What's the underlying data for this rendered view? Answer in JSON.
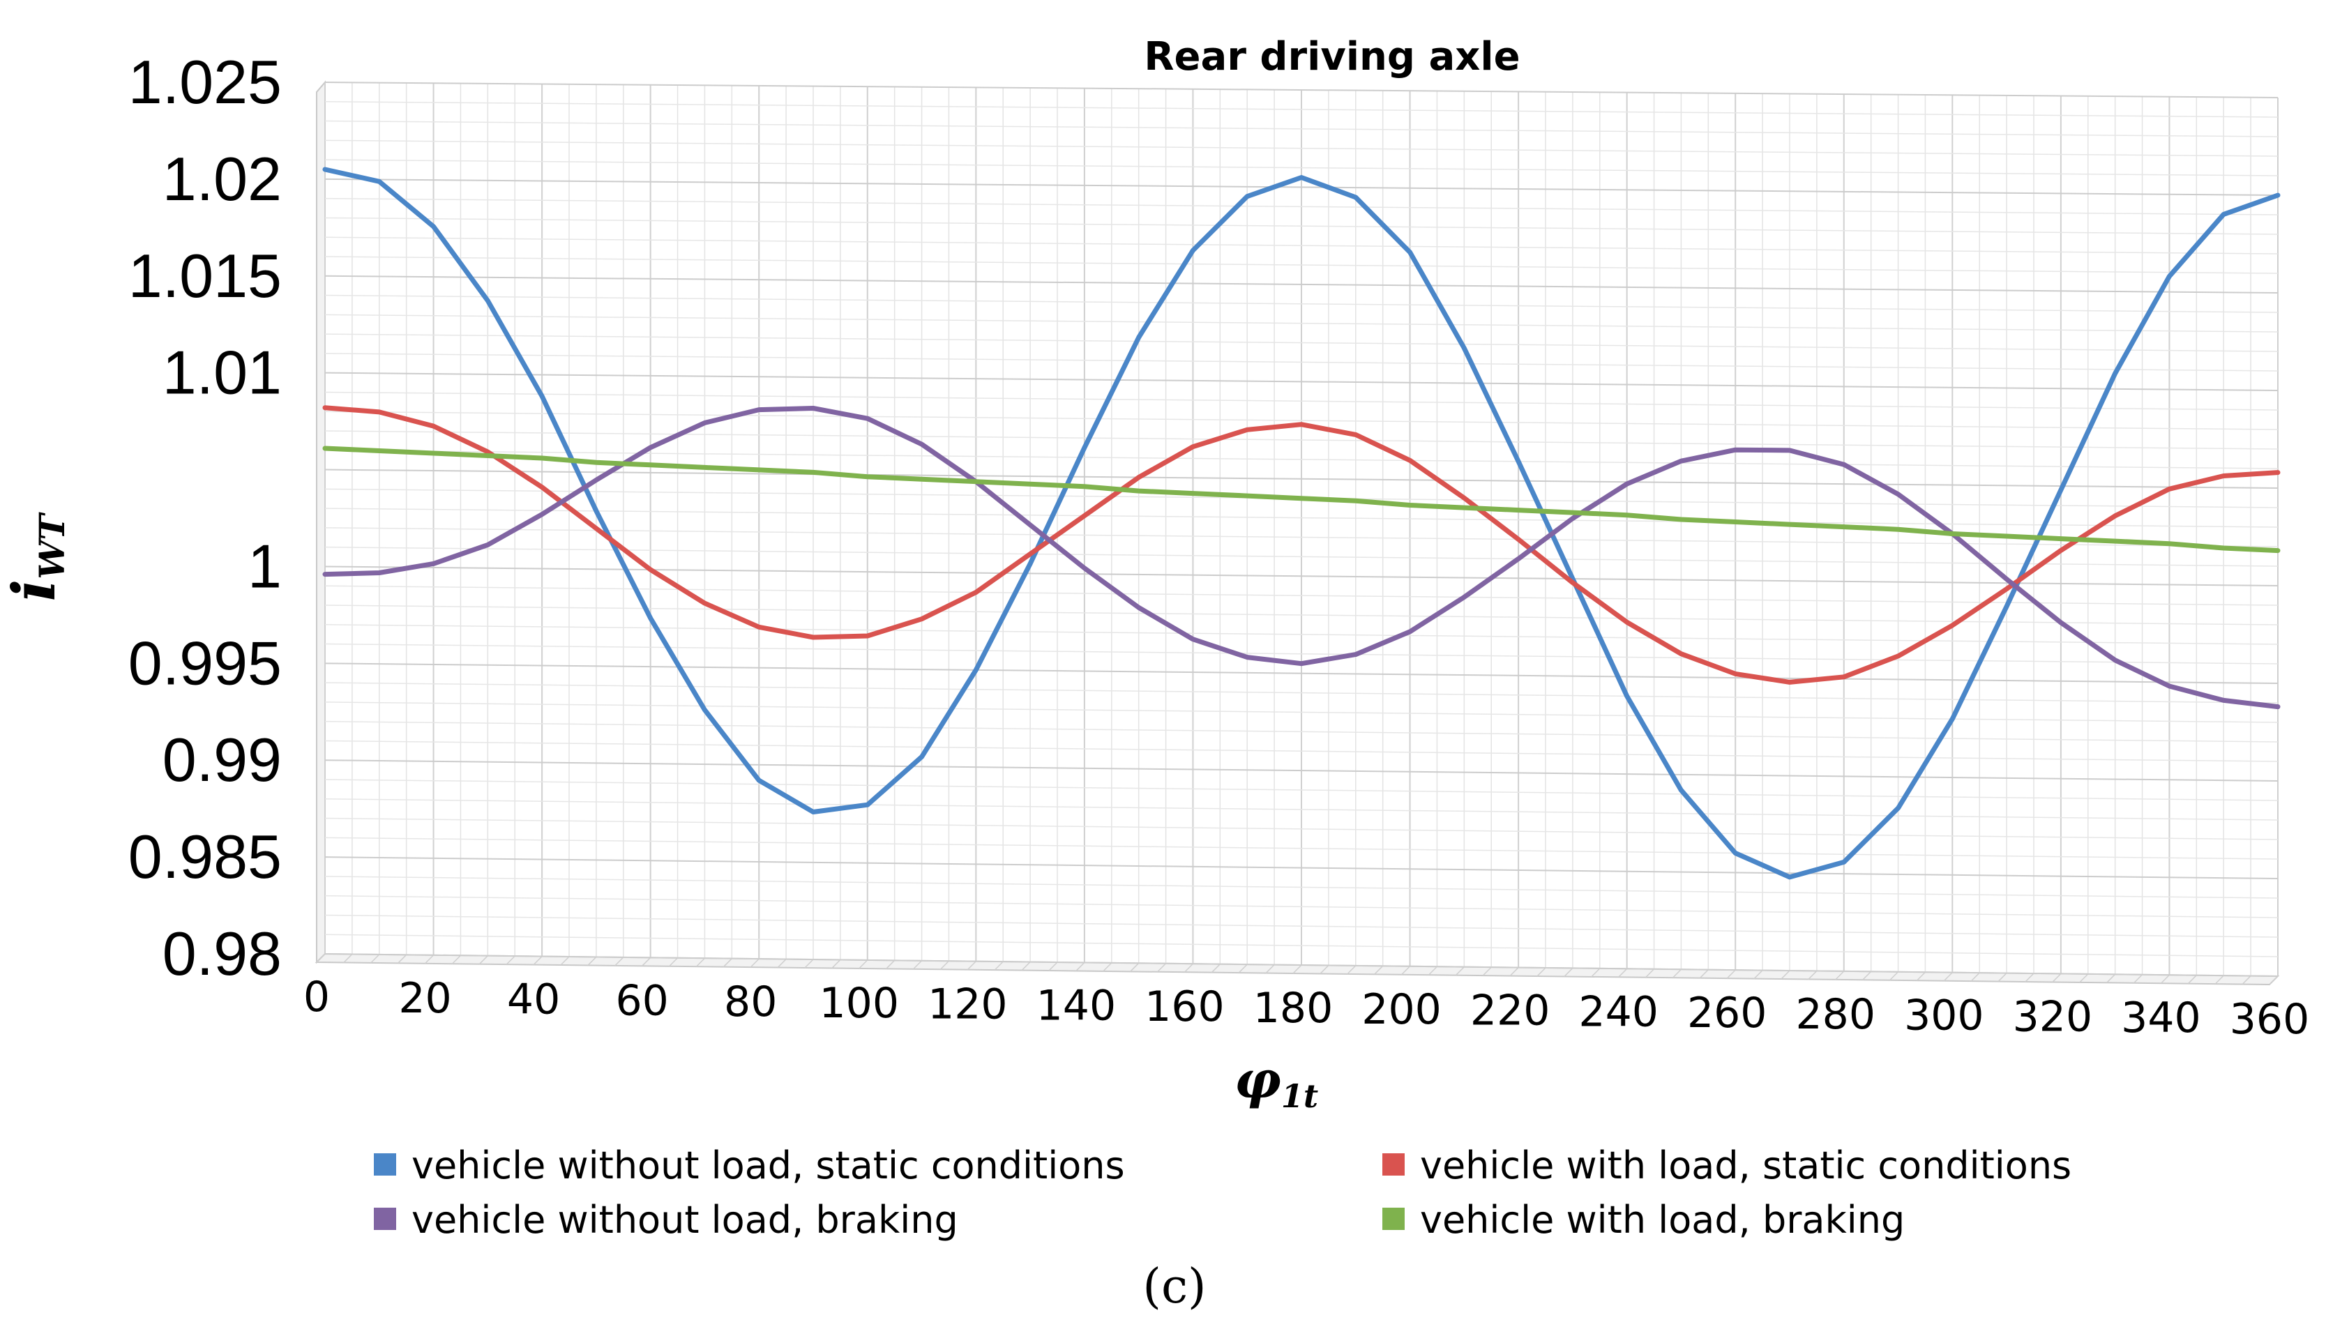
{
  "chart_data": {
    "type": "line",
    "title": "Rear driving axle",
    "ylabel": {
      "main": "i",
      "sub": "WT"
    },
    "xlabel": {
      "main": "φ",
      "sub": "1t"
    },
    "ylim": [
      0.98,
      1.025
    ],
    "y_ticks": [
      "0.98",
      "0.985",
      "0.99",
      "0.995",
      "1",
      "1.005",
      "1.01",
      "1.015",
      "1.02",
      "1.025"
    ],
    "y_tick_values": [
      0.98,
      0.985,
      0.99,
      0.995,
      1.0,
      1.005,
      1.01,
      1.015,
      1.02,
      1.025
    ],
    "y_tick_labels": [
      "0.98",
      "0.985",
      "0.99",
      "0.995",
      "1",
      "",
      "1.01",
      "1.015",
      "1.02",
      "1.025"
    ],
    "x_ticks": [
      0,
      20,
      40,
      60,
      80,
      100,
      120,
      140,
      160,
      180,
      200,
      220,
      240,
      260,
      280,
      300,
      320,
      340,
      360
    ],
    "x_tick_labels": [
      "0",
      "20",
      "40",
      "60",
      "80",
      "100",
      "120",
      "140",
      "160",
      "180",
      "200",
      "220",
      "240",
      "260",
      "280",
      "300",
      "320",
      "340",
      "360"
    ],
    "x": [
      0,
      10,
      20,
      30,
      40,
      50,
      60,
      70,
      80,
      90,
      100,
      110,
      120,
      130,
      140,
      150,
      160,
      170,
      180,
      190,
      200,
      210,
      220,
      230,
      240,
      250,
      260,
      270,
      280,
      290,
      300,
      310,
      320,
      330,
      340,
      350,
      360
    ],
    "grid": true,
    "legend_position": "bottom",
    "series": [
      {
        "name": "vehicle without load, static conditions",
        "color": "#4A86C8",
        "values": [
          1.0205,
          1.0199,
          1.0176,
          1.0138,
          1.0089,
          1.003,
          0.9975,
          0.9928,
          0.9892,
          0.9876,
          0.988,
          0.9905,
          0.995,
          1.0005,
          1.0065,
          1.0122,
          1.0167,
          1.0195,
          1.0205,
          1.0195,
          1.0167,
          1.0118,
          1.006,
          1.0,
          0.994,
          0.9892,
          0.986,
          0.9848,
          0.9856,
          0.9884,
          0.993,
          0.9988,
          1.0048,
          1.0108,
          1.0158,
          1.019,
          1.02
        ]
      },
      {
        "name": "vehicle with load, static conditions",
        "color": "#D9534F",
        "values": [
          1.0082,
          1.008,
          1.0073,
          1.006,
          1.0042,
          1.0021,
          1.0,
          0.9983,
          0.9971,
          0.9966,
          0.9967,
          0.9976,
          0.999,
          1.001,
          1.003,
          1.005,
          1.0066,
          1.0075,
          1.0078,
          1.0073,
          1.006,
          1.0041,
          1.002,
          0.9998,
          0.9978,
          0.9962,
          0.9952,
          0.9948,
          0.9951,
          0.9962,
          0.9978,
          0.9997,
          1.0017,
          1.0035,
          1.0049,
          1.0056,
          1.0058
        ]
      },
      {
        "name": "vehicle without load, braking",
        "color": "#8064A2",
        "values": [
          0.9996,
          0.9997,
          1.0002,
          1.0012,
          1.0028,
          1.0046,
          1.0063,
          1.0076,
          1.0083,
          1.0084,
          1.0079,
          1.0066,
          1.0047,
          1.0025,
          1.0003,
          0.9983,
          0.9967,
          0.9958,
          0.9955,
          0.996,
          0.9972,
          0.999,
          1.001,
          1.0031,
          1.0049,
          1.0061,
          1.0067,
          1.0067,
          1.006,
          1.0045,
          1.0025,
          1.0002,
          0.998,
          0.9961,
          0.9948,
          0.9941,
          0.9938
        ]
      },
      {
        "name": "vehicle with load, braking",
        "color": "#7FB24D",
        "values": [
          1.0061,
          1.006,
          1.0059,
          1.0058,
          1.0057,
          1.0055,
          1.0054,
          1.0053,
          1.0052,
          1.0051,
          1.0049,
          1.0048,
          1.0047,
          1.0046,
          1.0045,
          1.0043,
          1.0042,
          1.0041,
          1.004,
          1.0039,
          1.0037,
          1.0036,
          1.0035,
          1.0034,
          1.0033,
          1.0031,
          1.003,
          1.0029,
          1.0028,
          1.0027,
          1.0025,
          1.0024,
          1.0023,
          1.0022,
          1.0021,
          1.0019,
          1.0018
        ]
      }
    ]
  },
  "caption": "(c)"
}
